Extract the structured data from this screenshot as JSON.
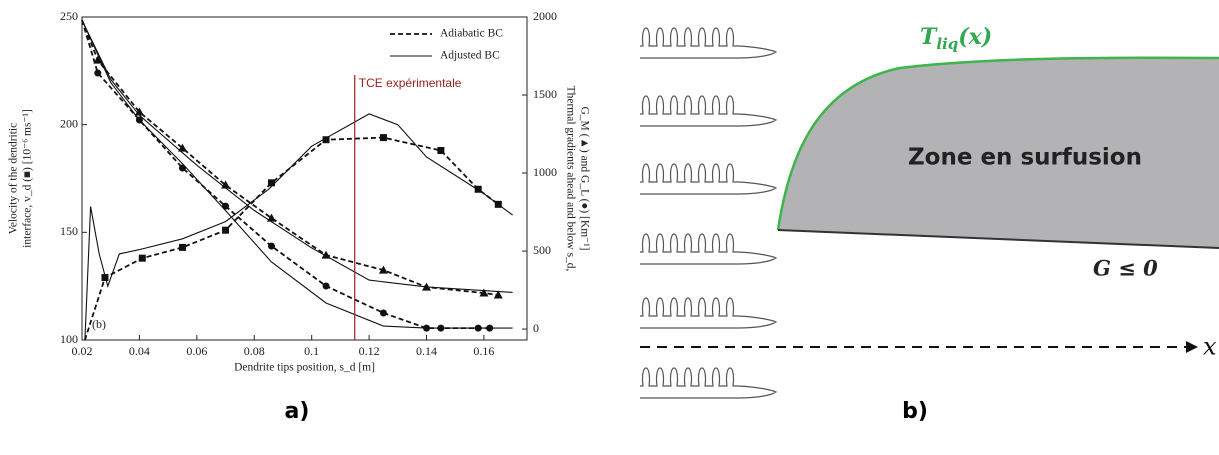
{
  "chart_data": {
    "type": "line",
    "xlabel": "Dendrite tips position, s_d [m]",
    "ylabel": [
      "Velocity of the dendritic",
      "interface, v_d (■) [10⁻⁶ ms⁻¹]"
    ],
    "y2label": [
      "Thermal gradients ahead and below s_d,",
      "G_M (▲) and G_L (●) [Km⁻¹]"
    ],
    "xlim": [
      0.02,
      0.175
    ],
    "xticks": [
      0.02,
      0.04,
      0.06,
      0.08,
      0.1,
      0.12,
      0.14,
      0.16
    ],
    "ylim": [
      100,
      250
    ],
    "yticks": [
      100,
      150,
      200,
      250
    ],
    "y2lim": [
      -70,
      2000
    ],
    "y2ticks": [
      0,
      500,
      1000,
      1500,
      2000
    ],
    "legend": [
      {
        "name": "Adiabatic BC",
        "dash": "dashed"
      },
      {
        "name": "Adjusted BC",
        "dash": "solid"
      }
    ],
    "annotations": [
      {
        "text": "TCE expérimentale",
        "x": 0.115,
        "color": "#9b1c1c"
      },
      {
        "text": "(b)"
      }
    ],
    "series": [
      {
        "axis": "y",
        "dash": "dashed",
        "marker": "square",
        "x": [
          0.021,
          0.028,
          0.041,
          0.055,
          0.07,
          0.086,
          0.105,
          0.125,
          0.145,
          0.158,
          0.165
        ],
        "values": [
          100,
          129,
          138,
          143,
          151,
          173,
          193,
          194,
          188,
          170,
          163
        ]
      },
      {
        "axis": "y",
        "dash": "solid",
        "x": [
          0.021,
          0.023,
          0.026,
          0.029,
          0.033,
          0.04,
          0.055,
          0.07,
          0.085,
          0.1,
          0.12,
          0.13,
          0.14,
          0.16,
          0.17
        ],
        "values": [
          100,
          162,
          140,
          125,
          140,
          142,
          147,
          155,
          170,
          190,
          205,
          200,
          185,
          168,
          158
        ]
      },
      {
        "axis": "y2",
        "dash": "dashed",
        "marker": "triangle",
        "x": [
          0.02,
          0.0255,
          0.04,
          0.055,
          0.07,
          0.086,
          0.105,
          0.125,
          0.14,
          0.16,
          0.165
        ],
        "values": [
          1980,
          1724,
          1391,
          1160,
          923,
          711,
          474,
          378,
          269,
          231,
          218
        ]
      },
      {
        "axis": "y2",
        "dash": "solid",
        "x": [
          0.02,
          0.03,
          0.04,
          0.06,
          0.08,
          0.1,
          0.12,
          0.14,
          0.17
        ],
        "values": [
          1980,
          1600,
          1370,
          1050,
          760,
          520,
          314,
          270,
          235
        ]
      },
      {
        "axis": "y2",
        "dash": "dashed",
        "marker": "circle",
        "x": [
          0.02,
          0.0255,
          0.04,
          0.055,
          0.07,
          0.086,
          0.105,
          0.125,
          0.14,
          0.145,
          0.158,
          0.162
        ],
        "values": [
          1980,
          1641,
          1340,
          1032,
          788,
          532,
          276,
          103,
          6,
          6,
          6,
          6
        ]
      },
      {
        "axis": "y2",
        "dash": "solid",
        "x": [
          0.02,
          0.03,
          0.04,
          0.055,
          0.07,
          0.086,
          0.105,
          0.125,
          0.14,
          0.17
        ],
        "values": [
          1980,
          1580,
          1340,
          1060,
          760,
          430,
          167,
          19,
          6,
          6
        ]
      }
    ]
  },
  "diagram": {
    "curve_label": {
      "base": "T",
      "sub": "liq",
      "rest": "(x)"
    },
    "zone": "Zone en surfusion",
    "gradient": "G ≤ 0",
    "axis": "x"
  },
  "captions": [
    "a)",
    "b)"
  ]
}
